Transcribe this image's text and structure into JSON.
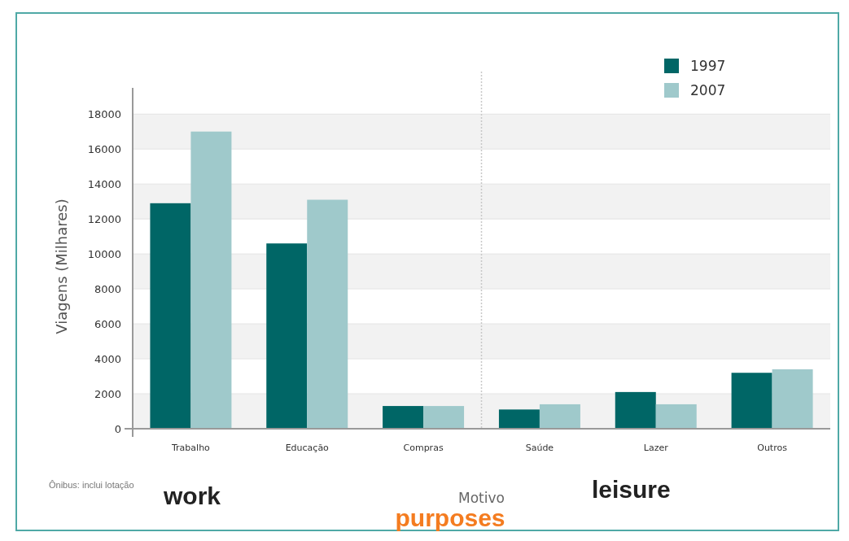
{
  "chart_data": {
    "type": "bar",
    "xlabel": "Motivo",
    "ylabel": "Viagens (Milhares)",
    "categories": [
      "Trabalho",
      "Educação",
      "Compras",
      "Saúde",
      "Lazer",
      "Outros"
    ],
    "series": [
      {
        "name": "1997",
        "color": "#006666",
        "values": [
          12900,
          10600,
          1300,
          1100,
          2100,
          3200
        ]
      },
      {
        "name": "2007",
        "color": "#9fc9cb",
        "values": [
          17000,
          13100,
          1300,
          1400,
          1400,
          3400
        ]
      }
    ],
    "ylim": [
      0,
      19500
    ],
    "yticks": [
      0,
      2000,
      4000,
      6000,
      8000,
      10000,
      12000,
      14000,
      16000,
      18000
    ],
    "grid": "y",
    "legend": "top right",
    "annotations": [
      "Ônibus: inclui lotação",
      "work",
      "leisure",
      "purposes"
    ]
  }
}
